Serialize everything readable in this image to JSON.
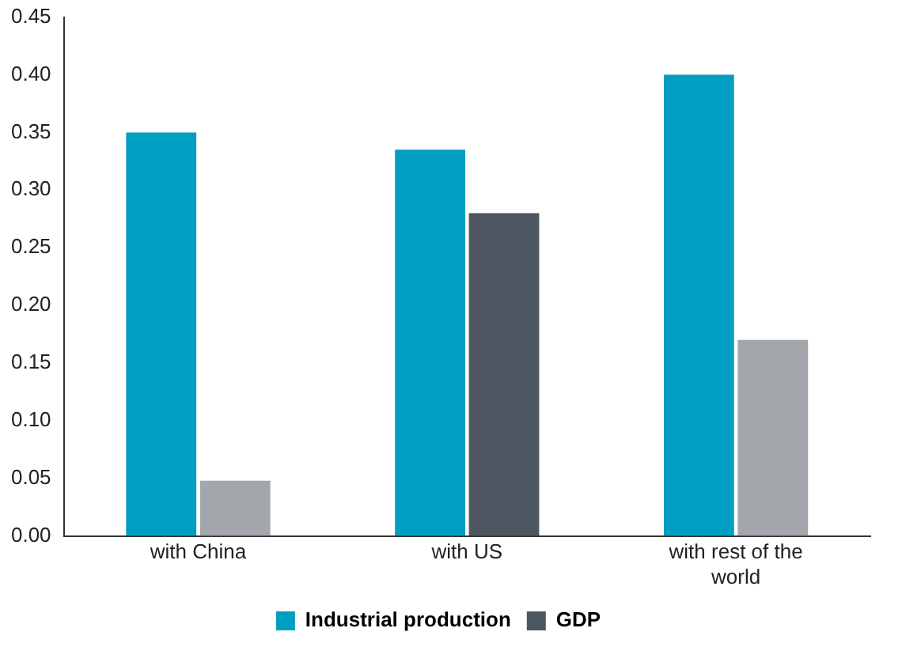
{
  "chart_data": {
    "type": "bar",
    "categories": [
      "with China",
      "with US",
      "with rest of the world"
    ],
    "series": [
      {
        "name": "Industrial production",
        "color": "#009ec1",
        "values": [
          0.35,
          0.335,
          0.4
        ]
      },
      {
        "name": "GDP",
        "color": "#4d5661",
        "colors": [
          "#a3a7ab",
          "#4d5661",
          "#a3a7ab"
        ],
        "values": [
          0.048,
          0.28,
          0.17
        ]
      }
    ],
    "ylim": [
      0,
      0.45
    ],
    "yticks": [
      {
        "value": 0,
        "label": "0.00"
      },
      {
        "value": 0.05,
        "label": "0.05"
      },
      {
        "value": 0.1,
        "label": "0.10"
      },
      {
        "value": 0.15,
        "label": "0.15"
      },
      {
        "value": 0.2,
        "label": "0.20"
      },
      {
        "value": 0.25,
        "label": "0.25"
      },
      {
        "value": 0.3,
        "label": "0.30"
      },
      {
        "value": 0.35,
        "label": "0.35"
      },
      {
        "value": 0.4,
        "label": "0.40"
      },
      {
        "value": 0.45,
        "label": "0.45"
      }
    ],
    "grid": false,
    "legend": "bottom"
  }
}
